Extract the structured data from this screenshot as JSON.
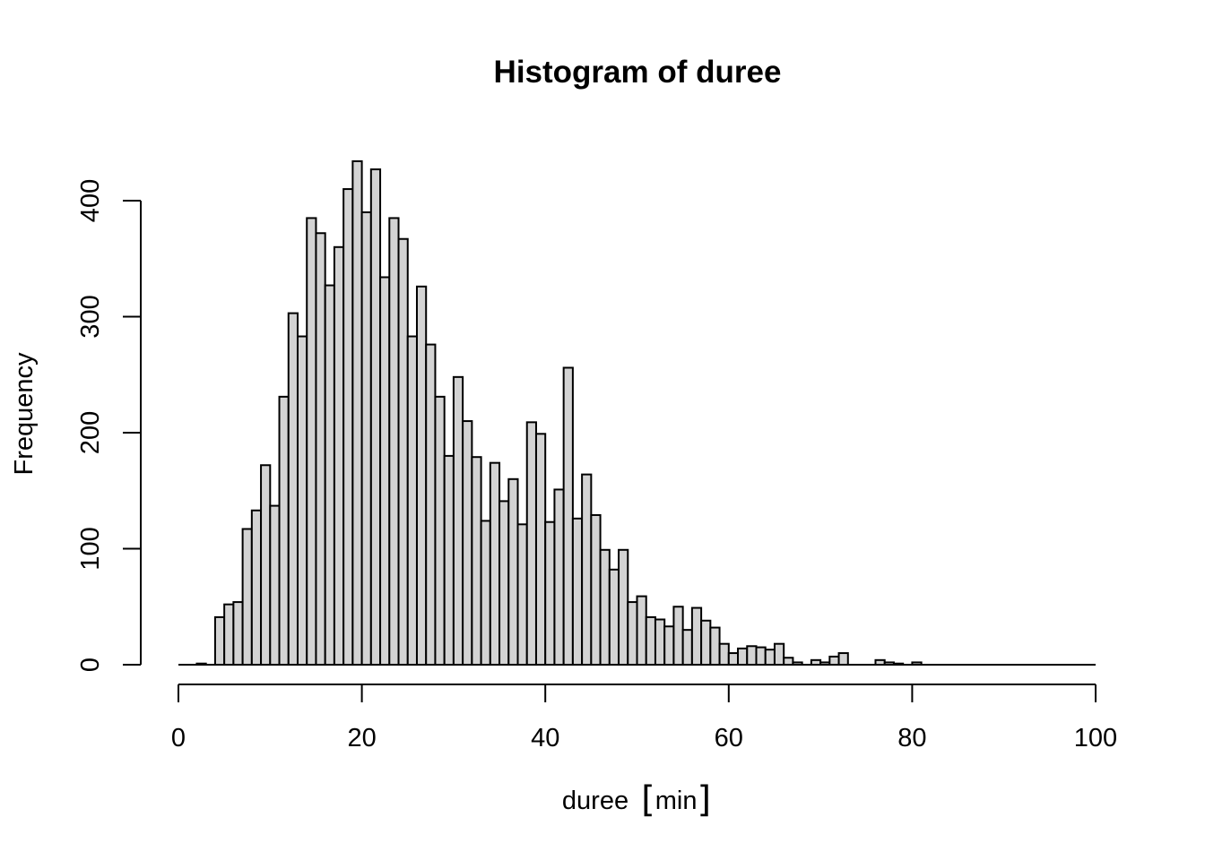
{
  "chart_data": {
    "type": "bar",
    "title": "Histogram of duree",
    "xlabel": {
      "text": "duree",
      "unit": "min"
    },
    "ylabel": "Frequency",
    "xlim": [
      0,
      100
    ],
    "ylim": [
      0,
      435
    ],
    "bin_width": 1,
    "x_ticks": [
      0,
      20,
      40,
      60,
      80,
      100
    ],
    "y_ticks": [
      0,
      100,
      200,
      300,
      400
    ],
    "bar_fill": "#d3d3d3",
    "bar_stroke": "#000000",
    "bins_start": 0,
    "values": [
      0,
      0,
      1,
      0,
      41,
      52,
      54,
      117,
      133,
      172,
      137,
      231,
      303,
      283,
      385,
      372,
      327,
      360,
      410,
      434,
      390,
      427,
      334,
      385,
      367,
      283,
      326,
      276,
      231,
      180,
      248,
      210,
      179,
      124,
      174,
      141,
      160,
      121,
      209,
      199,
      123,
      151,
      256,
      126,
      164,
      129,
      99,
      82,
      99,
      54,
      59,
      41,
      39,
      33,
      50,
      30,
      49,
      38,
      32,
      18,
      10,
      14,
      16,
      15,
      13,
      18,
      6,
      2,
      0,
      4,
      2,
      7,
      10,
      0,
      0,
      0,
      4,
      2,
      1,
      0,
      2,
      0,
      0,
      0,
      0,
      0,
      0,
      0,
      0,
      0,
      0,
      0,
      0,
      0,
      0,
      0,
      0,
      0,
      0,
      0
    ]
  }
}
